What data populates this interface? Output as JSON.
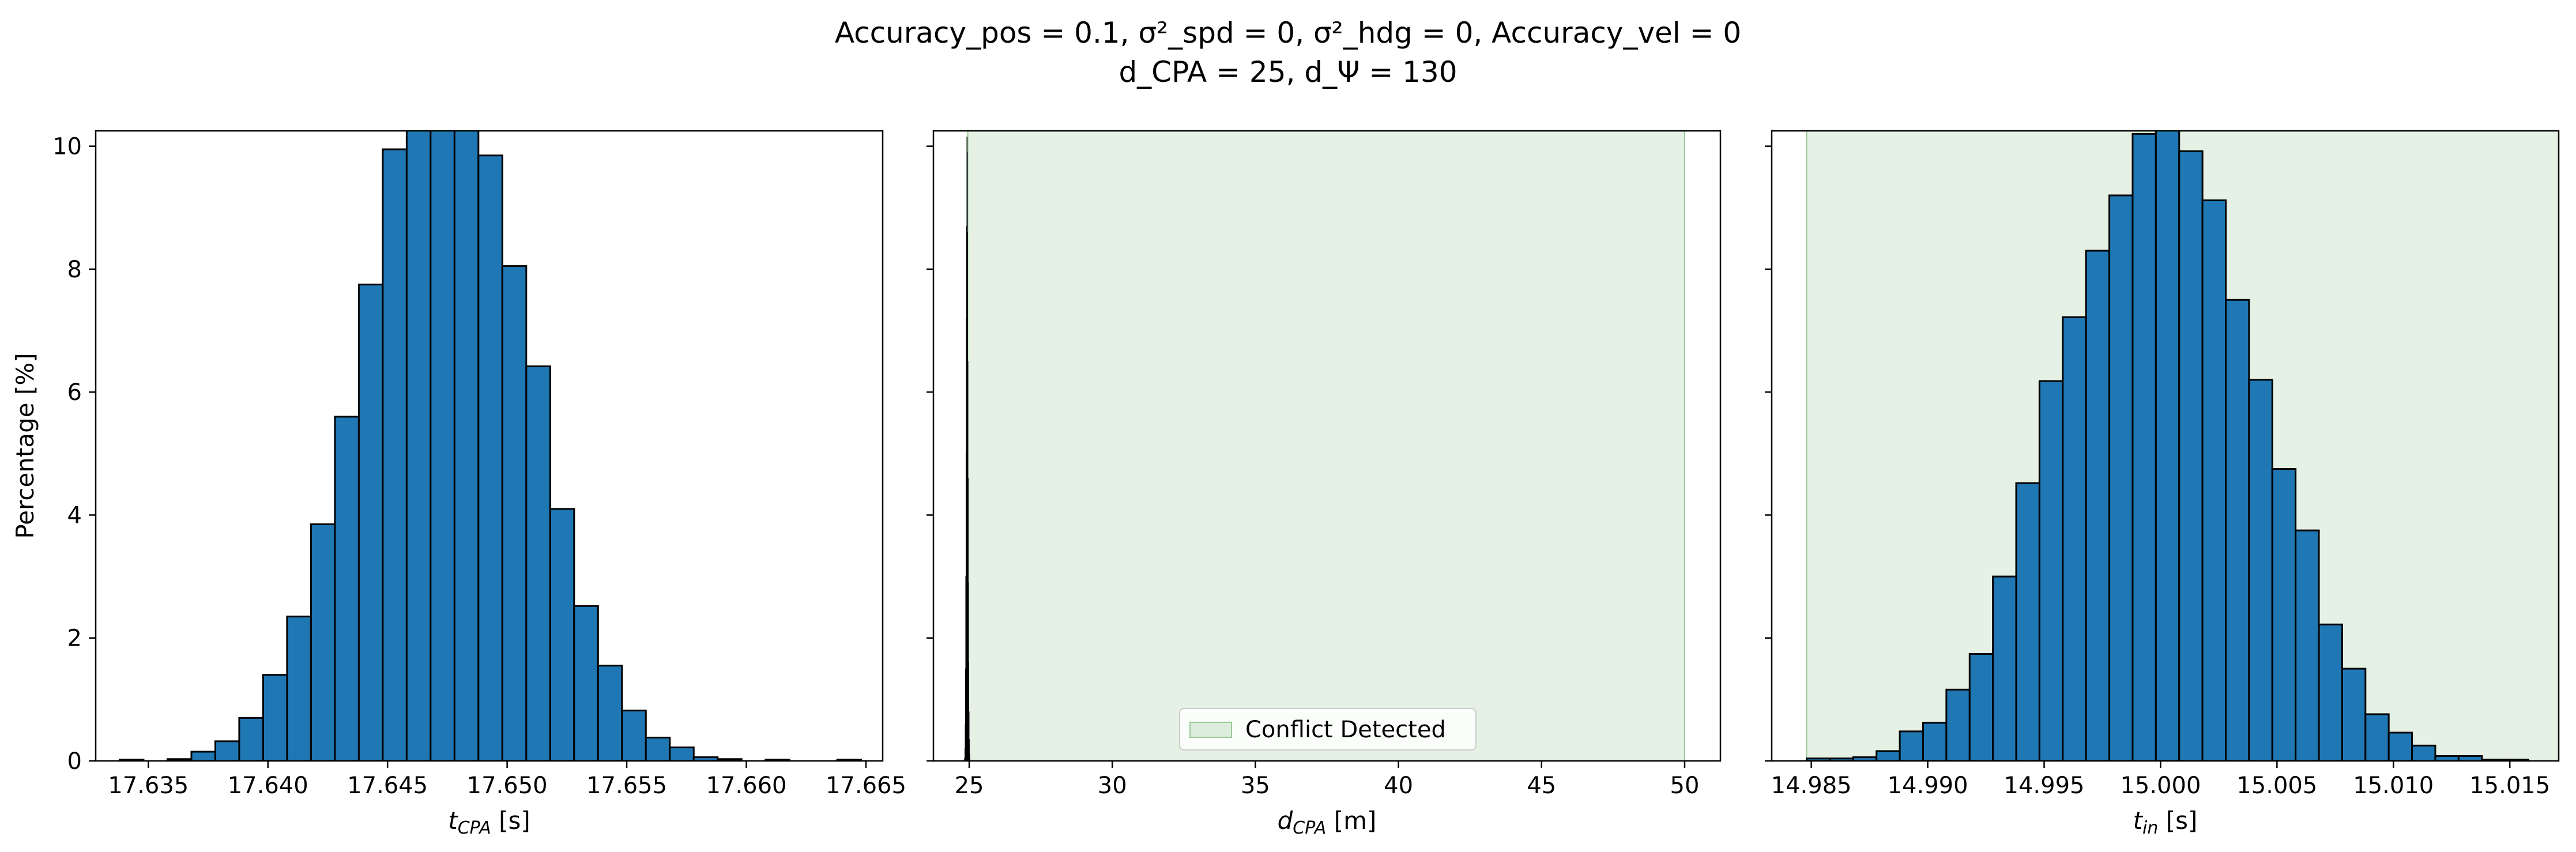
{
  "title_line1": "Accuracy_pos = 0.1, σ²_spd = 0, σ²_hdg = 0, Accuracy_vel = 0",
  "title_line2": "d_CPA = 25, d_Ψ = 130",
  "colors": {
    "bar": "#1f77b4",
    "bar_edge": "#000000",
    "conflict_fill": "#c9e3c9",
    "conflict_edge": "#98c998"
  },
  "chart_data": [
    {
      "type": "bar",
      "xlabel": "t_CPA [s]",
      "ylabel": "Percentage [%]",
      "xlim": [
        17.6328,
        17.6657
      ],
      "ylim": [
        0,
        10.25
      ],
      "xticks": [
        "17.635",
        "17.640",
        "17.645",
        "17.650",
        "17.655",
        "17.660",
        "17.665"
      ],
      "yticks": [
        "0",
        "2",
        "4",
        "6",
        "8",
        "10"
      ],
      "bin_edges": [
        17.6338,
        17.6348,
        17.6358,
        17.6368,
        17.6378,
        17.6388,
        17.6398,
        17.6408,
        17.6418,
        17.6428,
        17.6438,
        17.6448,
        17.6458,
        17.6468,
        17.6478,
        17.6488,
        17.6498,
        17.6508,
        17.6518,
        17.6528,
        17.6538,
        17.6548,
        17.6558,
        17.6568,
        17.6578,
        17.6588,
        17.6598,
        17.6608,
        17.6618,
        17.6628,
        17.6638,
        17.6648
      ],
      "values": [
        0.02,
        0.0,
        0.03,
        0.15,
        0.32,
        0.7,
        1.4,
        2.35,
        3.85,
        5.6,
        7.75,
        9.95,
        10.9,
        11.5,
        11.1,
        9.85,
        8.05,
        6.42,
        4.1,
        2.52,
        1.55,
        0.82,
        0.38,
        0.22,
        0.06,
        0.03,
        0.0,
        0.02,
        0.0,
        0.0,
        0.02
      ]
    },
    {
      "type": "bar",
      "xlabel": "d_CPA [m]",
      "xlim": [
        23.75,
        51.25
      ],
      "ylim": [
        0,
        10.25
      ],
      "xticks": [
        "25",
        "30",
        "35",
        "40",
        "45",
        "50"
      ],
      "conflict_region": [
        24.95,
        50
      ],
      "legend": "Conflict Detected",
      "legend_loc": "lower center",
      "bin_edges": [
        24.828,
        24.838,
        24.848,
        24.858,
        24.868,
        24.878,
        24.888,
        24.898,
        24.908,
        24.918,
        24.928,
        24.938,
        24.948,
        24.958,
        24.968,
        24.978,
        24.988,
        24.998,
        25.008,
        25.018,
        25.028,
        25.038
      ],
      "values": [
        0.02,
        0.05,
        0.2,
        0.6,
        1.5,
        3.0,
        5.0,
        7.2,
        8.7,
        10.15,
        9.9,
        8.6,
        6.5,
        4.6,
        2.9,
        1.6,
        0.8,
        0.35,
        0.12,
        0.04,
        0.01
      ]
    },
    {
      "type": "bar",
      "xlabel": "t_in [s]",
      "xlim": [
        14.9833,
        15.0171
      ],
      "ylim": [
        0,
        10.25
      ],
      "xticks": [
        "14.985",
        "14.990",
        "14.995",
        "15.000",
        "15.005",
        "15.010",
        "15.015"
      ],
      "conflict_region": [
        14.9848,
        15.0171
      ],
      "bin_edges": [
        14.9848,
        14.9858,
        14.9868,
        14.9878,
        14.9888,
        14.9898,
        14.9908,
        14.9918,
        14.9928,
        14.9938,
        14.9948,
        14.9958,
        14.9968,
        14.9978,
        14.9988,
        14.9998,
        15.0008,
        15.0018,
        15.0028,
        15.0038,
        15.0048,
        15.0058,
        15.0068,
        15.0078,
        15.0088,
        15.0098,
        15.0108,
        15.0118,
        15.0128,
        15.0138,
        15.0148,
        15.0158
      ],
      "values": [
        0.04,
        0.04,
        0.06,
        0.16,
        0.48,
        0.62,
        1.16,
        1.74,
        3.0,
        4.52,
        6.18,
        7.22,
        8.3,
        9.2,
        10.2,
        10.6,
        9.92,
        9.12,
        7.5,
        6.2,
        4.75,
        3.75,
        2.22,
        1.5,
        0.76,
        0.46,
        0.25,
        0.08,
        0.08,
        0.02,
        0.02
      ]
    }
  ]
}
